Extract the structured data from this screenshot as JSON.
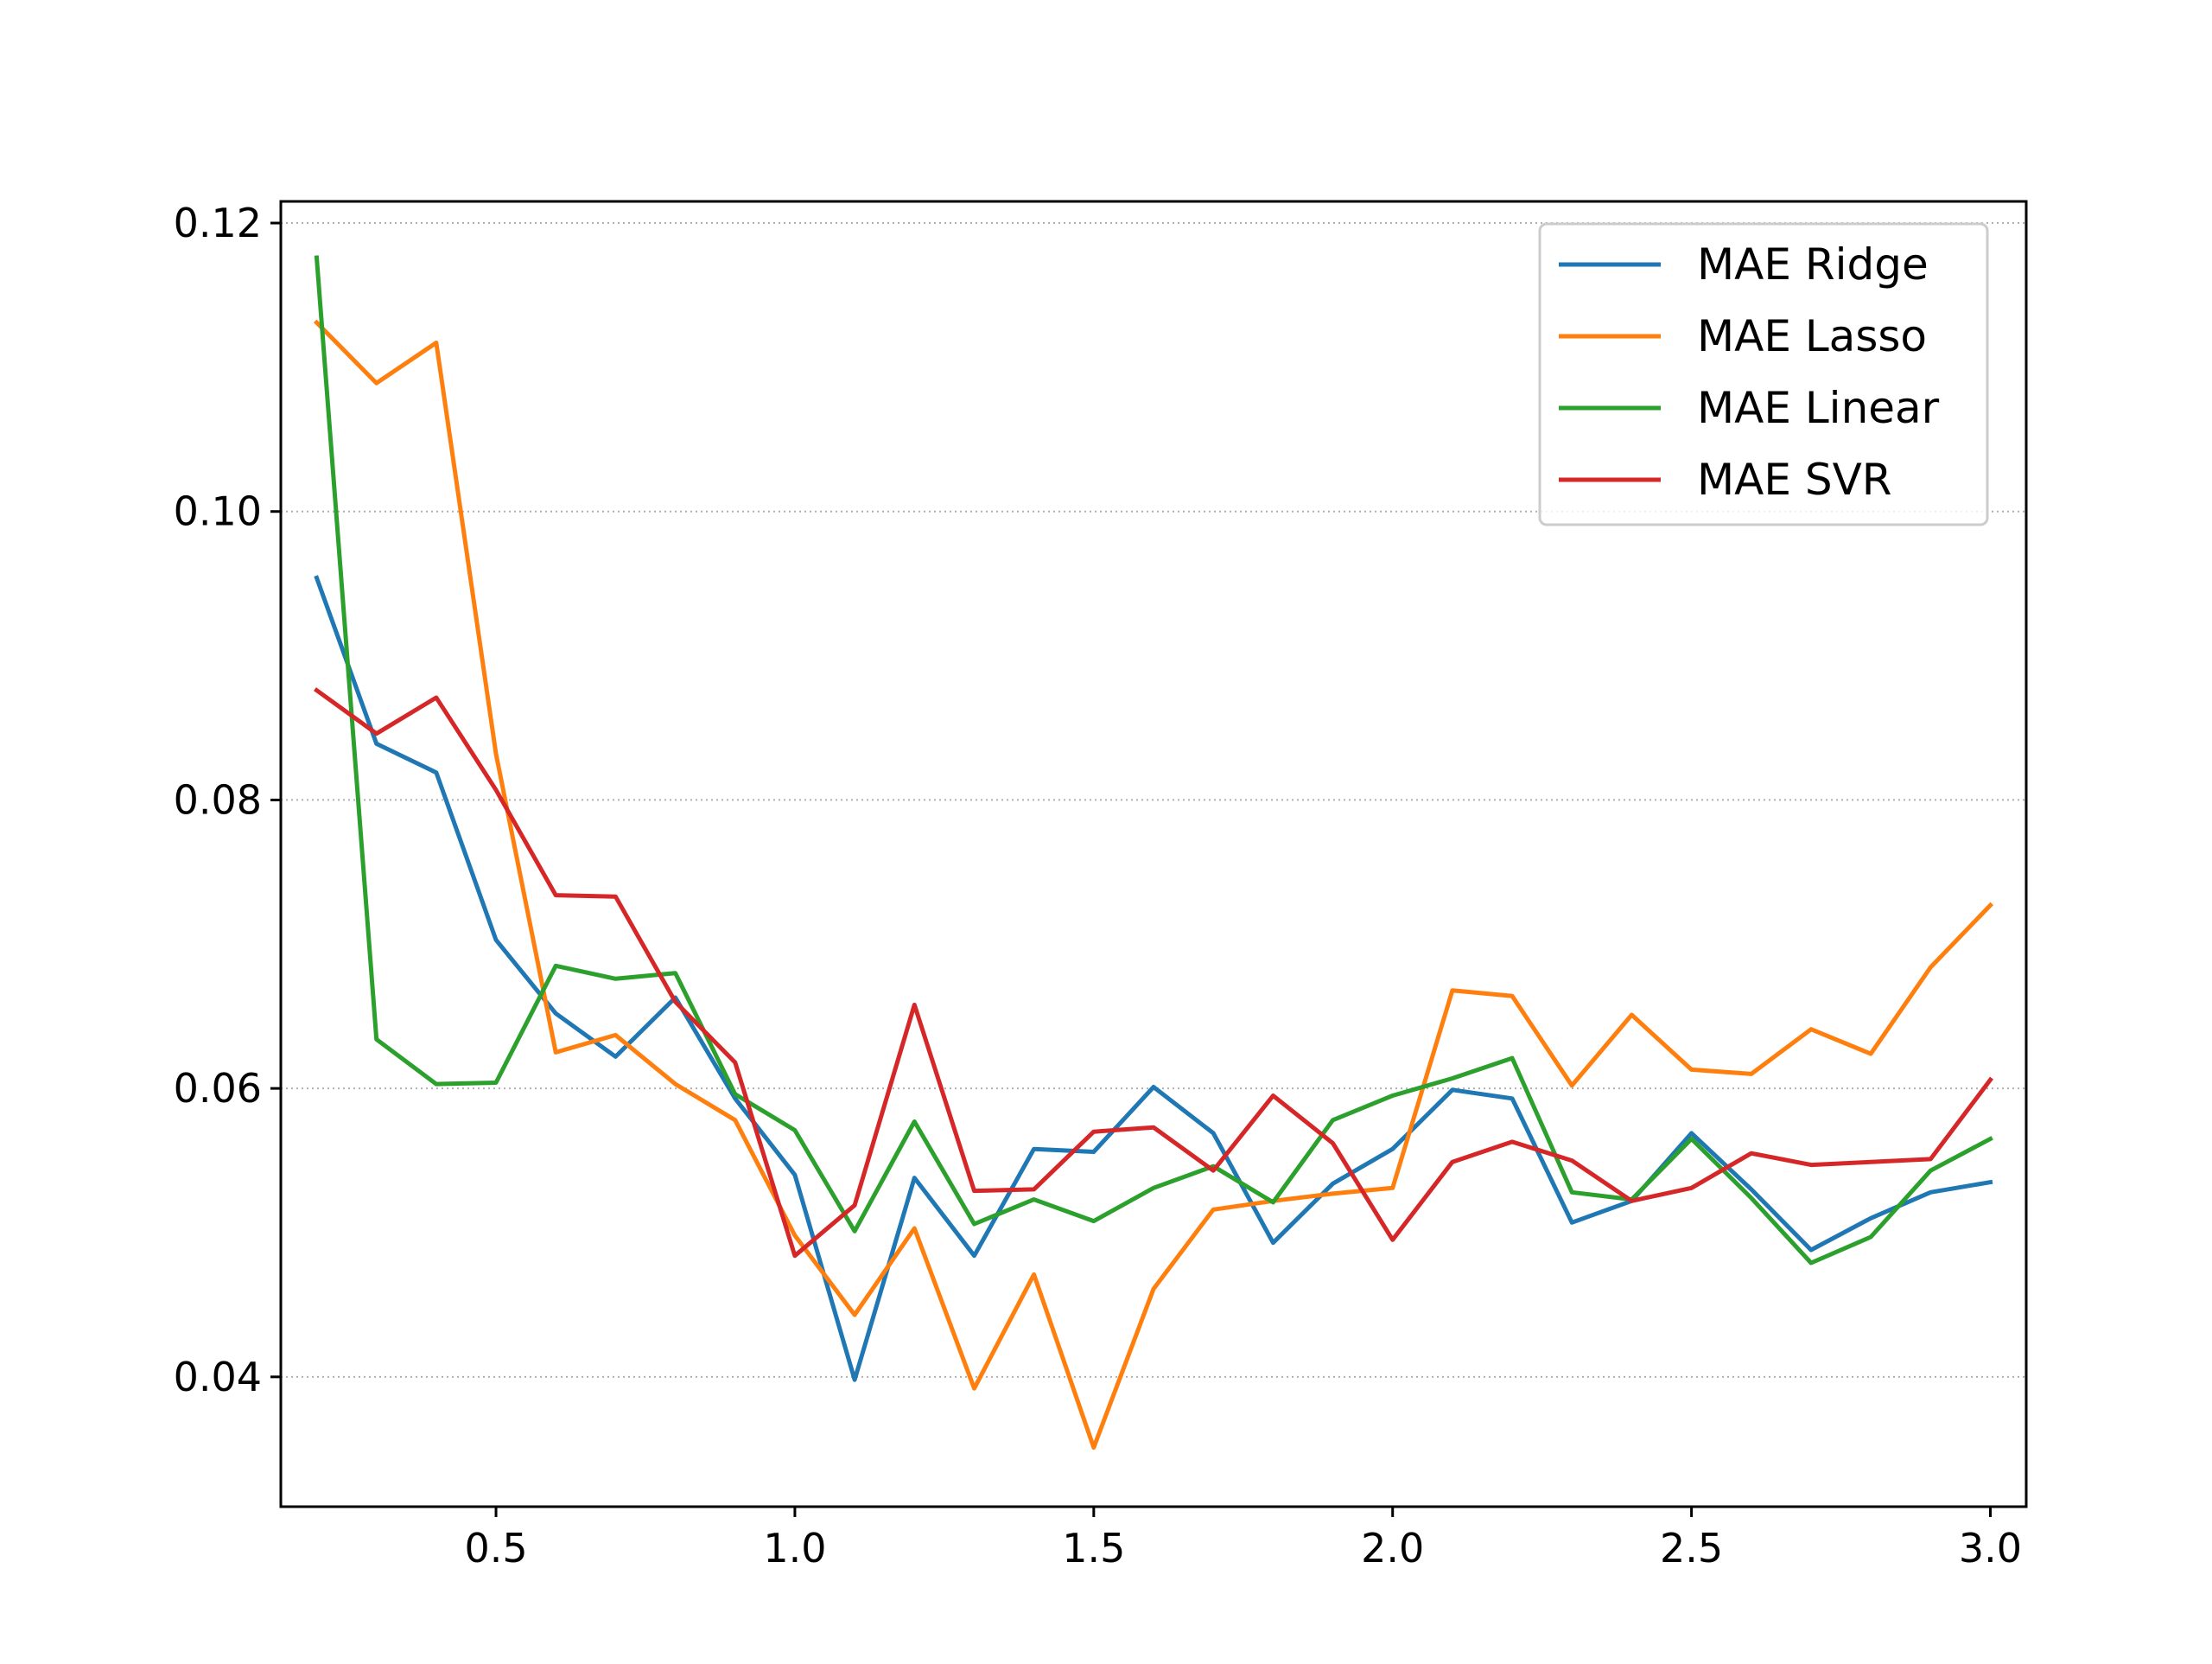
{
  "chart_data": {
    "type": "line",
    "title": "",
    "xlabel": "",
    "ylabel": "",
    "xlim": [
      0.14,
      3.06
    ],
    "ylim": [
      0.031,
      0.1215
    ],
    "x_ticks": [
      0.5,
      1.0,
      1.5,
      2.0,
      2.5,
      3.0
    ],
    "x_tick_labels": [
      "0.5",
      "1.0",
      "1.5",
      "2.0",
      "2.5",
      "3.0"
    ],
    "y_ticks": [
      0.04,
      0.06,
      0.08,
      0.1,
      0.12
    ],
    "y_tick_labels": [
      "0.04",
      "0.06",
      "0.08",
      "0.10",
      "0.12"
    ],
    "grid": "horizontal dotted",
    "legend_position": "top-right",
    "x": [
      0.2,
      0.3,
      0.4,
      0.5,
      0.6,
      0.7,
      0.8,
      0.9,
      1.0,
      1.1,
      1.2,
      1.3,
      1.4,
      1.5,
      1.6,
      1.7,
      1.8,
      1.9,
      2.0,
      2.1,
      2.2,
      2.3,
      2.4,
      2.5,
      2.6,
      2.7,
      2.8,
      2.9,
      3.0
    ],
    "series": [
      {
        "name": "MAE Ridge",
        "color": "#1f77b4",
        "values": [
          0.0954,
          0.0839,
          0.0819,
          0.0703,
          0.0652,
          0.0622,
          0.0663,
          0.0593,
          0.054,
          0.0398,
          0.0538,
          0.0484,
          0.0558,
          0.0556,
          0.0601,
          0.0569,
          0.0493,
          0.0534,
          0.0558,
          0.0599,
          0.0593,
          0.0507,
          0.0522,
          0.0569,
          0.053,
          0.0488,
          0.051,
          0.0528,
          0.0535
        ]
      },
      {
        "name": "MAE Lasso",
        "color": "#ff7f0e",
        "values": [
          0.1131,
          0.1089,
          0.1117,
          0.0832,
          0.0625,
          0.0637,
          0.0603,
          0.0578,
          0.0498,
          0.0443,
          0.0503,
          0.0392,
          0.0471,
          0.0351,
          0.0461,
          0.0516,
          0.0522,
          0.0527,
          0.0531,
          0.0668,
          0.0664,
          0.0602,
          0.0651,
          0.0613,
          0.061,
          0.0641,
          0.0624,
          0.0684,
          0.0727
        ]
      },
      {
        "name": "MAE Linear",
        "color": "#2ca02c",
        "values": [
          0.1176,
          0.0634,
          0.0603,
          0.0604,
          0.0685,
          0.0676,
          0.068,
          0.0596,
          0.0571,
          0.0501,
          0.0577,
          0.0506,
          0.0523,
          0.0508,
          0.0531,
          0.0546,
          0.0521,
          0.0578,
          0.0595,
          0.0607,
          0.0621,
          0.0528,
          0.0523,
          0.0565,
          0.0524,
          0.0479,
          0.0497,
          0.0543,
          0.0565
        ]
      },
      {
        "name": "MAE SVR",
        "color": "#d62728",
        "values": [
          0.0876,
          0.0846,
          0.0871,
          0.0807,
          0.0734,
          0.0733,
          0.066,
          0.0618,
          0.0484,
          0.0519,
          0.0658,
          0.0529,
          0.053,
          0.057,
          0.0573,
          0.0543,
          0.0595,
          0.0562,
          0.0495,
          0.0549,
          0.0563,
          0.055,
          0.0522,
          0.0531,
          0.0555,
          0.0547,
          0.0549,
          0.0551,
          0.0606
        ]
      }
    ]
  }
}
